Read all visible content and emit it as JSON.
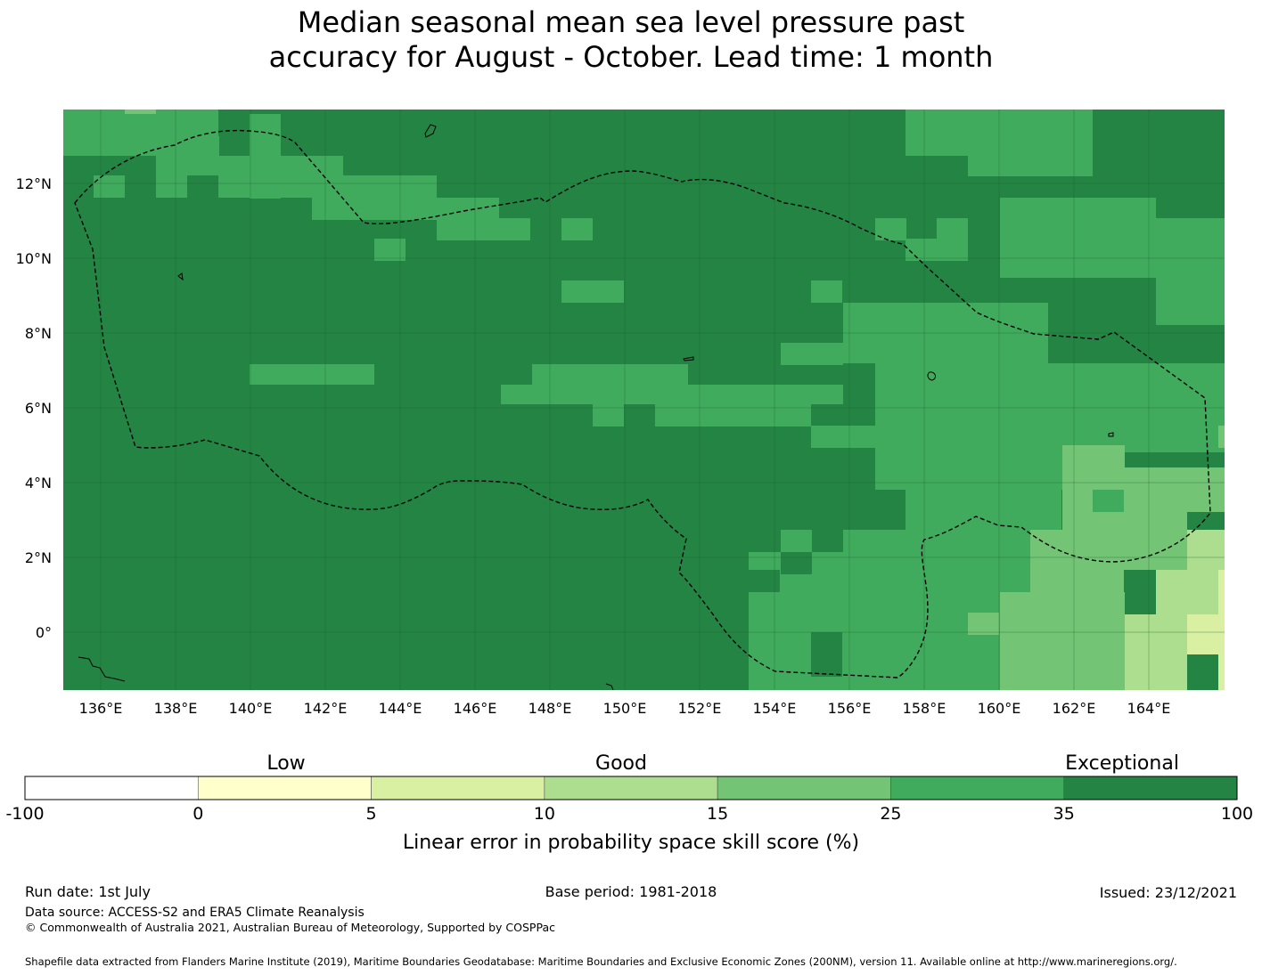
{
  "title": {
    "line1": "Median seasonal mean sea level pressure past",
    "line2": "accuracy for August - October. Lead time: 1 month"
  },
  "map": {
    "lat_labels": [
      "12°N",
      "10°N",
      "8°N",
      "6°N",
      "4°N",
      "2°N",
      "0°"
    ],
    "lon_labels": [
      "136°E",
      "138°E",
      "140°E",
      "142°E",
      "144°E",
      "146°E",
      "148°E",
      "150°E",
      "152°E",
      "154°E",
      "156°E",
      "158°E",
      "160°E",
      "162°E",
      "164°E"
    ],
    "category_colors": {
      "cat4": "#74c476",
      "cat3": "#addd8e",
      "cat2": "#d9f0a3",
      "cat1": "#ffffcc",
      "cat5": "#41ab5d",
      "cat6": "#238443"
    },
    "boundary_style": "dashed EEZ outline"
  },
  "colorbar": {
    "band_labels": [
      "Low",
      "Good",
      "Exceptional"
    ],
    "ticks": [
      "-100",
      "0",
      "5",
      "10",
      "15",
      "25",
      "35",
      "100"
    ],
    "colors": [
      "#ffffff",
      "#ffffcc",
      "#d9f0a3",
      "#addd8e",
      "#74c476",
      "#41ab5d",
      "#238443"
    ],
    "label": "Linear error in probability space skill score (%)"
  },
  "footer": {
    "run_date": "Run date: 1st July",
    "base_period": "Base period: 1981-2018",
    "issued": "Issued: 23/12/2021",
    "data_source": "Data source: ACCESS-S2 and ERA5 Climate Reanalysis",
    "copyright": "© Commonwealth of Australia 2021, Australian Bureau of Meteorology, Supported by COSPPac",
    "shapefile": "Shapefile data extracted from Flanders Marine Institute (2019), Maritime Boundaries Geodatabase: Maritime Boundaries and Exclusive Economic Zones (200NM), version 11. Available online at http://www.marineregions.org/."
  }
}
